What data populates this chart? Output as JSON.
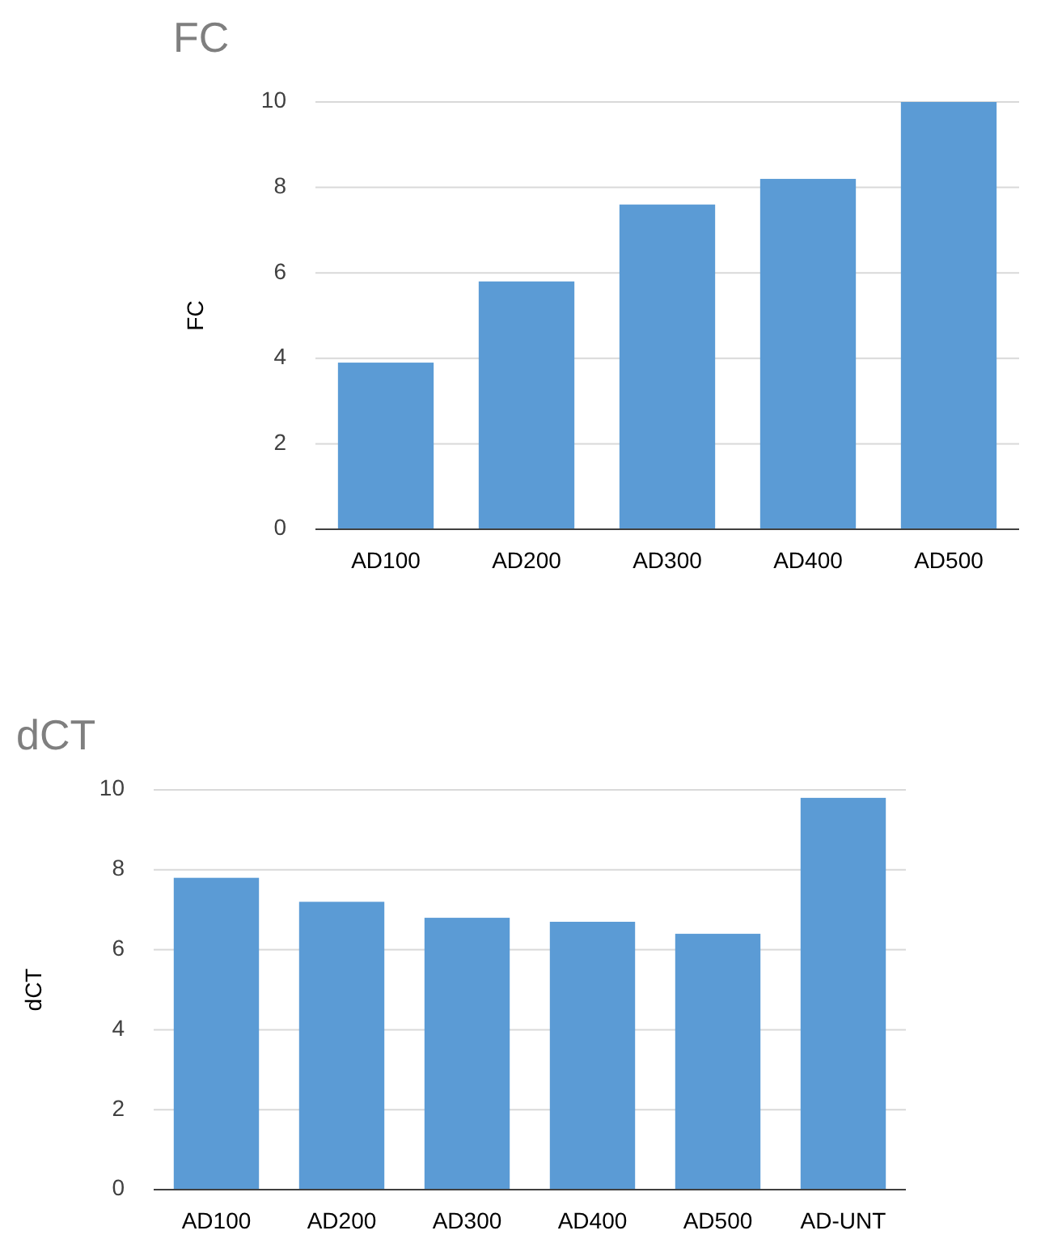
{
  "chart_data": [
    {
      "type": "bar",
      "title": "FC",
      "ylabel": "FC",
      "categories": [
        "AD100",
        "AD200",
        "AD300",
        "AD400",
        "AD500"
      ],
      "values": [
        3.9,
        5.8,
        7.6,
        8.2,
        10.0
      ],
      "color": "#5b9bd5",
      "ylim": [
        0,
        10
      ],
      "yticks": [
        0,
        2,
        4,
        6,
        8,
        10
      ],
      "grid": "y"
    },
    {
      "type": "bar",
      "title": "dCT",
      "ylabel": "dCT",
      "categories": [
        "AD100",
        "AD200",
        "AD300",
        "AD400",
        "AD500",
        "AD-UNT"
      ],
      "values": [
        7.8,
        7.2,
        6.8,
        6.7,
        6.4,
        9.8
      ],
      "color": "#5b9bd5",
      "ylim": [
        0,
        10
      ],
      "yticks": [
        0,
        2,
        4,
        6,
        8,
        10
      ],
      "grid": "y"
    }
  ]
}
